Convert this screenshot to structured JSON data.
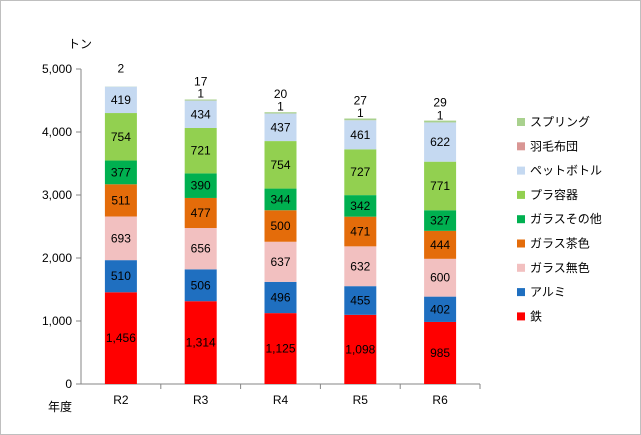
{
  "chart_data": {
    "type": "bar",
    "stacked": true,
    "title": "",
    "ylabel": "トン",
    "xlabel": "年度",
    "ylim": [
      0,
      5000
    ],
    "yticks": [
      "0",
      "1,000",
      "2,000",
      "3,000",
      "4,000",
      "5,000"
    ],
    "ytick_values": [
      0,
      1000,
      2000,
      3000,
      4000,
      5000
    ],
    "grid": false,
    "legend_position": "right",
    "categories": [
      "R2",
      "R3",
      "R4",
      "R5",
      "R6"
    ],
    "series": [
      {
        "name": "鉄",
        "color": "#ff0000",
        "values": [
          1456,
          1314,
          1125,
          1098,
          985
        ],
        "labels": [
          "1,456",
          "1,314",
          "1,125",
          "1,098",
          "985"
        ]
      },
      {
        "name": "アルミ",
        "color": "#1f6fc0",
        "values": [
          510,
          506,
          496,
          455,
          402
        ],
        "labels": [
          "510",
          "506",
          "496",
          "455",
          "402"
        ]
      },
      {
        "name": "ガラス無色",
        "color": "#f2c0c0",
        "values": [
          693,
          656,
          637,
          632,
          600
        ],
        "labels": [
          "693",
          "656",
          "637",
          "632",
          "600"
        ]
      },
      {
        "name": "ガラス茶色",
        "color": "#e46c0a",
        "values": [
          511,
          477,
          500,
          471,
          444
        ],
        "labels": [
          "511",
          "477",
          "500",
          "471",
          "444"
        ]
      },
      {
        "name": "ガラスその他",
        "color": "#00b050",
        "values": [
          377,
          390,
          344,
          342,
          327
        ],
        "labels": [
          "377",
          "390",
          "344",
          "342",
          "327"
        ]
      },
      {
        "name": "プラ容器",
        "color": "#92d050",
        "values": [
          754,
          721,
          754,
          727,
          771
        ],
        "labels": [
          "754",
          "721",
          "754",
          "727",
          "771"
        ]
      },
      {
        "name": "ペットボトル",
        "color": "#c5d9f1",
        "values": [
          419,
          434,
          437,
          461,
          622
        ],
        "labels": [
          "419",
          "434",
          "437",
          "461",
          "622"
        ]
      },
      {
        "name": "羽毛布団",
        "color": "#d99694",
        "values": [
          0,
          1,
          1,
          1,
          1
        ],
        "labels": [
          "",
          "1",
          "1",
          "1",
          "1"
        ]
      },
      {
        "name": "スプリング",
        "color": "#a9d18e",
        "values": [
          2,
          17,
          20,
          27,
          29
        ],
        "labels": [
          "2",
          "17",
          "20",
          "27",
          "29"
        ]
      }
    ]
  }
}
